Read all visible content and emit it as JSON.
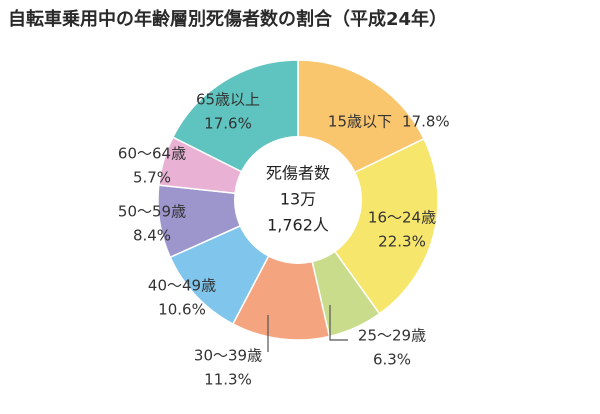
{
  "chart_data": {
    "type": "donut",
    "title": "自転車乗用中の年齢層別死傷者数の割合（平成24年）",
    "center_label": [
      "死傷者数",
      "13万",
      "1,762人"
    ],
    "categories": [
      "15歳以下",
      "16〜24歳",
      "25〜29歳",
      "30〜39歳",
      "40〜49歳",
      "50〜59歳",
      "60〜64歳",
      "65歳以上"
    ],
    "values": [
      17.8,
      22.3,
      6.3,
      11.3,
      10.6,
      8.4,
      5.7,
      17.6
    ],
    "value_labels": [
      "17.8%",
      "22.3%",
      "6.3%",
      "11.3%",
      "10.6%",
      "8.4%",
      "5.7%",
      "17.6%"
    ],
    "colors": [
      "#f9c56d",
      "#f7e66c",
      "#c9dc8c",
      "#f4a47e",
      "#80c5ec",
      "#9d96cd",
      "#e9b2d5",
      "#5fc4bf"
    ]
  }
}
